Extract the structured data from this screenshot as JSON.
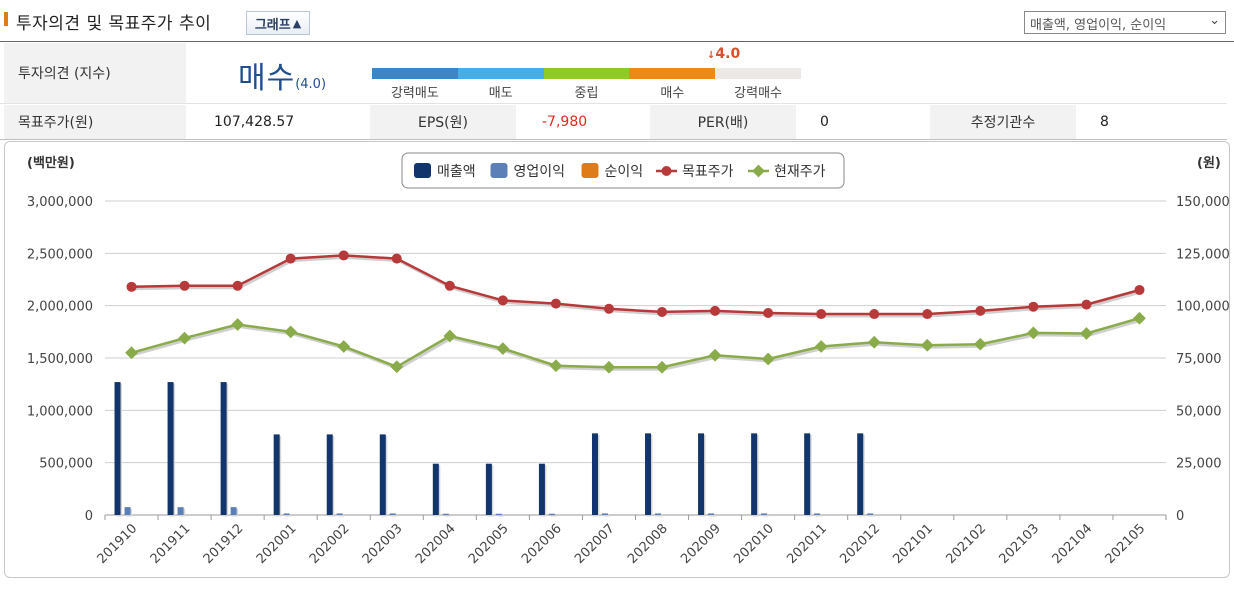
{
  "header": {
    "title": "투자의견 및 목표주가 추이",
    "graph_toggle_label": "그래프",
    "graph_toggle_icon": "chevron-up-icon",
    "series_select_value": "매출액, 영업이익, 순이익"
  },
  "opinion": {
    "label": "투자의견 (지수)",
    "value": "매수",
    "score": "(4.0)",
    "marker": "4.0",
    "scale": [
      {
        "label": "강력매도",
        "color": "#3a86c8"
      },
      {
        "label": "매도",
        "color": "#44aee8"
      },
      {
        "label": "중립",
        "color": "#8fcb23"
      },
      {
        "label": "매수",
        "color": "#ee8a12"
      },
      {
        "label": "강력매수",
        "color": "#ece8e6"
      }
    ]
  },
  "metrics": {
    "target_price_label": "목표주가(원)",
    "target_price_value": "107,428.57",
    "eps_label": "EPS(원)",
    "eps_value": "-7,980",
    "per_label": "PER(배)",
    "per_value": "0",
    "estimators_label": "추정기관수",
    "estimators_value": "8",
    "negative_color": "#e0281e"
  },
  "chart_data": {
    "type": "bar",
    "left_unit": "(백만원)",
    "right_unit": "(원)",
    "left_ylim": [
      0,
      3000000
    ],
    "right_ylim": [
      0,
      150000
    ],
    "left_ticks": [
      "3,000,000",
      "2,500,000",
      "2,000,000",
      "1,500,000",
      "1,000,000",
      "500,000",
      "0"
    ],
    "right_ticks": [
      "150,000",
      "125,000",
      "100,000",
      "75,000",
      "50,000",
      "25,000",
      "0"
    ],
    "categories": [
      "201910",
      "201911",
      "201912",
      "202001",
      "202002",
      "202003",
      "202004",
      "202005",
      "202006",
      "202007",
      "202008",
      "202009",
      "202010",
      "202011",
      "202012",
      "202101",
      "202102",
      "202103",
      "202104",
      "202105"
    ],
    "legend_position": "top-center",
    "series": [
      {
        "name": "매출액",
        "kind": "bar",
        "axis": "left",
        "color": "#12356b",
        "values": [
          1270000,
          1270000,
          1270000,
          770000,
          770000,
          770000,
          490000,
          490000,
          490000,
          780000,
          780000,
          780000,
          780000,
          780000,
          780000,
          null,
          null,
          null,
          null,
          null
        ]
      },
      {
        "name": "영업이익",
        "kind": "bar",
        "axis": "left",
        "color": "#5c7fb8",
        "values": [
          75000,
          75000,
          75000,
          15000,
          15000,
          15000,
          12000,
          12000,
          12000,
          15000,
          15000,
          15000,
          15000,
          15000,
          15000,
          null,
          null,
          null,
          null,
          null
        ]
      },
      {
        "name": "순이익",
        "kind": "bar",
        "axis": "left",
        "color": "#e07b1a",
        "values": [
          null,
          null,
          null,
          null,
          null,
          null,
          null,
          null,
          null,
          null,
          null,
          null,
          null,
          null,
          null,
          null,
          null,
          null,
          null,
          null
        ]
      },
      {
        "name": "목표주가",
        "kind": "line",
        "axis": "right",
        "color": "#b8393a",
        "values": [
          109000,
          109500,
          109500,
          122500,
          124000,
          122500,
          109500,
          102500,
          101000,
          98500,
          97000,
          97500,
          96500,
          96000,
          96000,
          96000,
          97500,
          99500,
          100500,
          107500
        ]
      },
      {
        "name": "현재주가",
        "kind": "line",
        "axis": "right",
        "color": "#8aab4a",
        "values": [
          77500,
          84500,
          91000,
          87500,
          80500,
          70800,
          85500,
          79500,
          71300,
          70600,
          70600,
          76300,
          74500,
          80500,
          82500,
          81100,
          81600,
          87000,
          86700,
          94000
        ]
      }
    ]
  }
}
